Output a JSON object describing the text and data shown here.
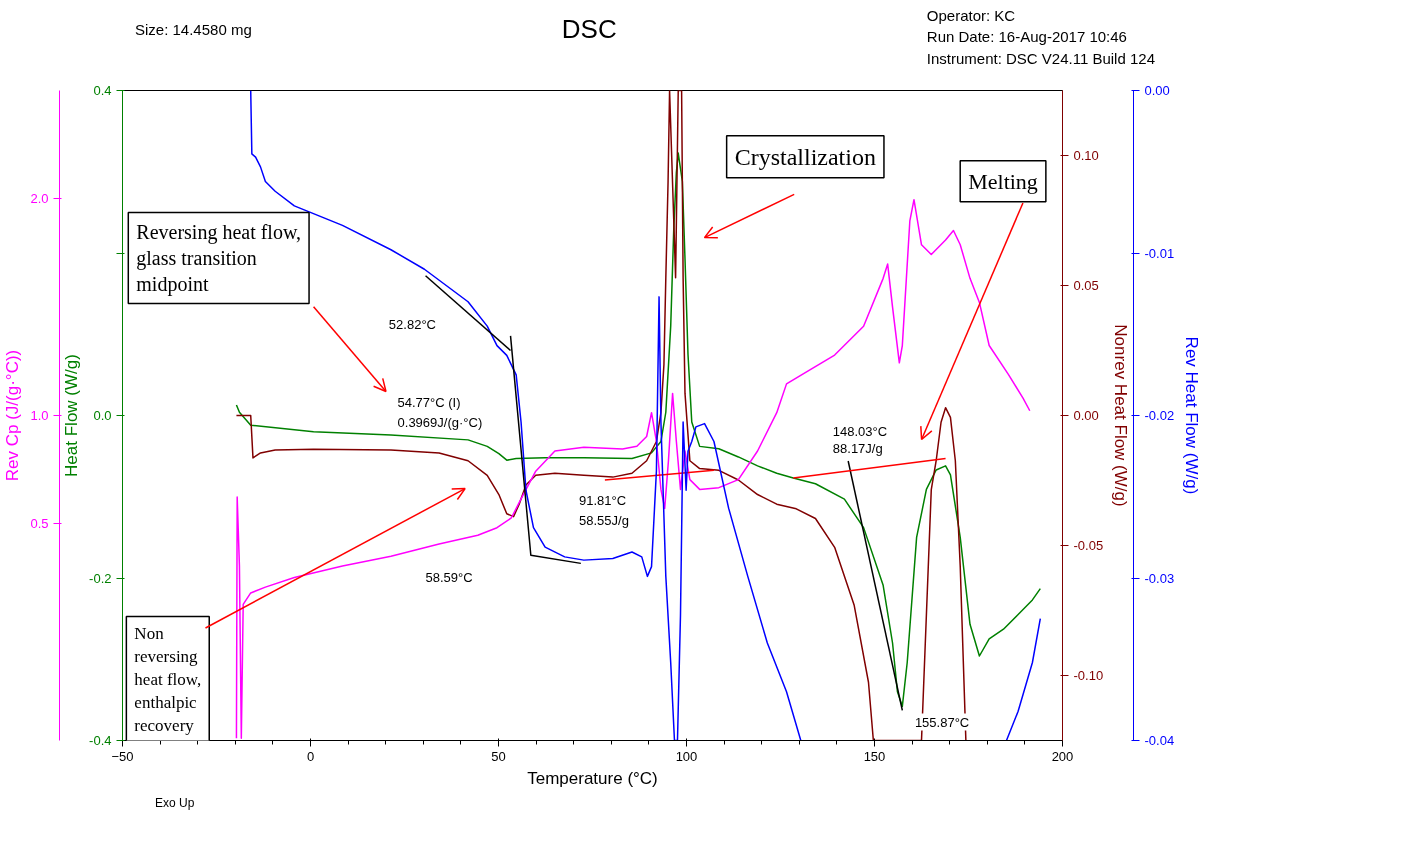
{
  "chart_data": [
    {
      "type": "line",
      "title": "DSC",
      "xlabel": "Temperature (°C)",
      "ylabel": "Heat Flow (W/g)",
      "y2label": "Rev Cp (J/(g·°C))",
      "y3label": "Nonrev Heat Flow (W/g)",
      "xlim": [
        -50,
        200
      ],
      "xticks": [
        -50,
        0,
        50,
        100,
        150,
        200
      ],
      "ylim": [
        -0.4,
        0.4
      ],
      "yticks": [
        {
          "value": -0.4,
          "label": "-0.4"
        },
        {
          "value": -0.2,
          "label": "-0.2"
        },
        {
          "value": 0,
          "label": "0.0"
        },
        {
          "value": 0.2,
          "label": null
        },
        {
          "value": 0.4,
          "label": "0.4"
        }
      ],
      "y2lim": [
        -0.5,
        2.5
      ],
      "y2ticks": [
        {
          "value": 0.5,
          "label": "0.5"
        },
        {
          "value": 1,
          "label": "1.0"
        },
        {
          "value": 2,
          "label": "2.0"
        }
      ],
      "y3lim": [
        -0.125,
        0.125
      ],
      "y3ticks": [
        {
          "value": -0.1,
          "label": "-0.10"
        },
        {
          "value": -0.05,
          "label": "-0.05"
        },
        {
          "value": 0,
          "label": "0.00"
        },
        {
          "value": 0.05,
          "label": "0.05"
        },
        {
          "value": 0.1,
          "label": "0.10"
        }
      ],
      "series": [
        {
          "color": "#008000",
          "axis": "y",
          "x": [
            -19.7,
            -18.9,
            -15.9,
            0.8,
            21.4,
            41.9,
            47.0,
            50.1,
            52.2,
            54.7,
            62.4,
            72.7,
            85.5,
            90.7,
            93.2,
            94.5,
            95.8,
            96.6,
            97.3,
            97.8,
            98.9,
            99.6,
            100.4,
            101.4,
            103.5,
            108.6,
            113.8,
            118.9,
            124.0,
            128.4,
            134.3,
            142.0,
            147.1,
            152.3,
            154.8,
            156.1,
            157.4,
            158.7,
            161.2,
            163.8,
            166.4,
            168.9,
            170.2,
            172.8,
            175.4,
            177.9,
            180.5,
            184.3,
            188.2,
            192.0,
            194.1
          ],
          "values": [
            0.013,
            0.004,
            -0.012,
            -0.02,
            -0.024,
            -0.03,
            -0.038,
            -0.047,
            -0.055,
            -0.053,
            -0.052,
            -0.052,
            -0.053,
            -0.046,
            -0.032,
            0.004,
            0.11,
            0.228,
            0.299,
            0.323,
            0.288,
            0.193,
            0.075,
            -0.008,
            -0.038,
            -0.041,
            -0.051,
            -0.062,
            -0.071,
            -0.077,
            -0.084,
            -0.103,
            -0.138,
            -0.209,
            -0.28,
            -0.34,
            -0.358,
            -0.304,
            -0.15,
            -0.091,
            -0.067,
            -0.062,
            -0.073,
            -0.15,
            -0.257,
            -0.296,
            -0.275,
            -0.263,
            -0.245,
            -0.227,
            -0.213
          ]
        },
        {
          "color": "#800000",
          "axis": "y3",
          "x": [
            -19.7,
            -15.9,
            -15.3,
            -13.3,
            -9.4,
            0.8,
            21.4,
            34.2,
            41.9,
            47.0,
            50.1,
            52.2,
            54.0,
            55.5,
            57.3,
            59.9,
            65.0,
            72.7,
            80.4,
            85.5,
            89.4,
            92.0,
            93.2,
            94.0,
            94.5,
            95.1,
            95.5,
            97.1,
            97.8,
            98.7,
            99.1,
            99.6,
            100.9,
            103.5,
            108.6,
            113.8,
            118.9,
            124.0,
            129.2,
            134.3,
            139.4,
            144.6,
            148.4,
            149.7,
            162.5,
            163.8,
            165.1,
            166.4,
            167.7,
            168.9,
            170.2,
            171.5,
            172.8,
            174.3
          ],
          "values": [
            0,
            0,
            -0.0163,
            -0.0144,
            -0.0133,
            -0.013,
            -0.0133,
            -0.0144,
            -0.0174,
            -0.023,
            -0.0304,
            -0.0378,
            -0.0389,
            -0.0341,
            -0.0267,
            -0.023,
            -0.0222,
            -0.023,
            -0.0237,
            -0.0222,
            -0.0174,
            -0.01,
            0.0011,
            0.0196,
            0.053,
            0.09,
            0.125,
            0.053,
            0.125,
            0.125,
            0.053,
            0.0085,
            -0.0174,
            -0.0204,
            -0.0211,
            -0.0248,
            -0.0304,
            -0.0341,
            -0.0359,
            -0.0396,
            -0.0507,
            -0.073,
            -0.1026,
            -0.125,
            -0.125,
            -0.0767,
            -0.0285,
            -0.0174,
            -0.0026,
            0.003,
            -0.0007,
            -0.0174,
            -0.0581,
            -0.125
          ]
        },
        {
          "color": "#ff00ff",
          "axis": "y2",
          "x": [
            -19.7,
            -19.5,
            -18.9,
            -18.4,
            -17.9,
            -15.9,
            -12.0,
            -4.3,
            8.5,
            21.4,
            34.2,
            44.5,
            49.6,
            53.4,
            56.0,
            59.9,
            65.0,
            72.7,
            83.0,
            86.8,
            89.4,
            90.7,
            92.0,
            93.2,
            94.2,
            95.2,
            96.3,
            97.3,
            98.4,
            99.6,
            100.9,
            103.5,
            108.6,
            113.8,
            118.9,
            124.0,
            126.6,
            131.7,
            139.4,
            147.1,
            152.3,
            153.5,
            154.8,
            156.6,
            157.4,
            159.4,
            160.5,
            162.5,
            165.1,
            168.9,
            171.0,
            172.8,
            175.4,
            177.9,
            180.5,
            185.6,
            189.5,
            191.3
          ],
          "values": [
            -0.49,
            0.624,
            0.305,
            -0.49,
            0.128,
            0.181,
            0.208,
            0.252,
            0.305,
            0.35,
            0.407,
            0.447,
            0.482,
            0.527,
            0.615,
            0.743,
            0.836,
            0.854,
            0.845,
            0.858,
            0.903,
            1.013,
            0.881,
            0.659,
            0.571,
            0.792,
            1.102,
            0.881,
            0.659,
            0.836,
            0.704,
            0.659,
            0.667,
            0.704,
            0.836,
            1.013,
            1.146,
            1.199,
            1.279,
            1.412,
            1.633,
            1.699,
            1.5,
            1.243,
            1.323,
            1.898,
            1.996,
            1.788,
            1.743,
            1.81,
            1.854,
            1.788,
            1.633,
            1.522,
            1.323,
            1.19,
            1.08,
            1.022
          ]
        },
        {
          "color": "#000000",
          "axis": "y",
          "x": [
            143.0,
            157.4
          ],
          "values": [
            -0.056,
            -0.363
          ]
        },
        {
          "color": "#ff0000",
          "axis": "y3",
          "x": [
            78.3,
            107.3
          ],
          "values": [
            -0.0248,
            -0.0211
          ]
        },
        {
          "color": "#ff0000",
          "axis": "y",
          "x": [
            128.4,
            168.9
          ],
          "values": [
            -0.077,
            -0.053
          ]
        }
      ],
      "annotations": [
        "Size:  14.4580 mg",
        "Operator: KC",
        "Run Date: 16-Aug-2017 10:46",
        "Instrument: DSC V24.11 Build 124",
        "Reversing heat flow, glass transition midpoint",
        "Crystallization",
        "Melting",
        "Non reversing heat flow, enthalpic recovery",
        "52.82°C",
        "54.77°C (I)",
        "0.3969J/(g·°C)",
        "58.59°C",
        "91.81°C",
        "58.55J/g",
        "148.03°C",
        "88.17J/g",
        "155.87°C",
        "Exo Up"
      ]
    },
    {
      "type": "line",
      "ylabel": "Rev Heat Flow (W/g)",
      "xlim": [
        -50,
        200
      ],
      "tick_labels": "y",
      "ylim": [
        -0.04,
        0
      ],
      "yticks": [
        {
          "value": -0.04,
          "label": "-0.04"
        },
        {
          "value": -0.03,
          "label": "-0.03"
        },
        {
          "value": -0.02,
          "label": "-0.02"
        },
        {
          "value": -0.01,
          "label": "-0.01"
        },
        {
          "value": 0,
          "label": "0.00"
        }
      ],
      "series": [
        {
          "color": "#0000ff",
          "x": [
            -15.9,
            -15.6,
            -14.6,
            -13.3,
            -12.0,
            -9.4,
            -4.3,
            8.5,
            21.4,
            30.3,
            41.9,
            47.0,
            49.6,
            52.2,
            54.7,
            56.0,
            57.3,
            59.3,
            62.4,
            67.6,
            72.7,
            80.4,
            85.5,
            88.1,
            89.6,
            90.7,
            92.0,
            92.7,
            93.2,
            94.5,
            95.8,
            96.8,
            97.6,
            98.4,
            99.1,
            99.9,
            100.4,
            101.4,
            102.5,
            104.8,
            107.3,
            111.2,
            116.3,
            121.5,
            126.6,
            130.4,
            160.0,
            185.1,
            188.2,
            192.0,
            194.1
          ],
          "values": [
            0,
            -0.0039,
            -0.0041,
            -0.0047,
            -0.0056,
            -0.0062,
            -0.0071,
            -0.0083,
            -0.0098,
            -0.011,
            -0.013,
            -0.0145,
            -0.0157,
            -0.0163,
            -0.0175,
            -0.0204,
            -0.0246,
            -0.0269,
            -0.0281,
            -0.0287,
            -0.0289,
            -0.0288,
            -0.0284,
            -0.0287,
            -0.0299,
            -0.0293,
            -0.0234,
            -0.0127,
            -0.0204,
            -0.0299,
            -0.0352,
            -0.04,
            -0.04,
            -0.0323,
            -0.0204,
            -0.0246,
            -0.0222,
            -0.0216,
            -0.0207,
            -0.0205,
            -0.0216,
            -0.0257,
            -0.0299,
            -0.034,
            -0.037,
            -0.04,
            null,
            -0.04,
            -0.0382,
            -0.0352,
            -0.0325
          ]
        },
        {
          "color": "#000000",
          "x": [
            30.6,
            53.2
          ],
          "values": [
            -0.0114,
            -0.016
          ]
        },
        {
          "color": "#000000",
          "x": [
            53.2,
            58.6,
            71.9
          ],
          "values": [
            -0.0151,
            -0.0286,
            -0.0291
          ]
        }
      ]
    }
  ]
}
